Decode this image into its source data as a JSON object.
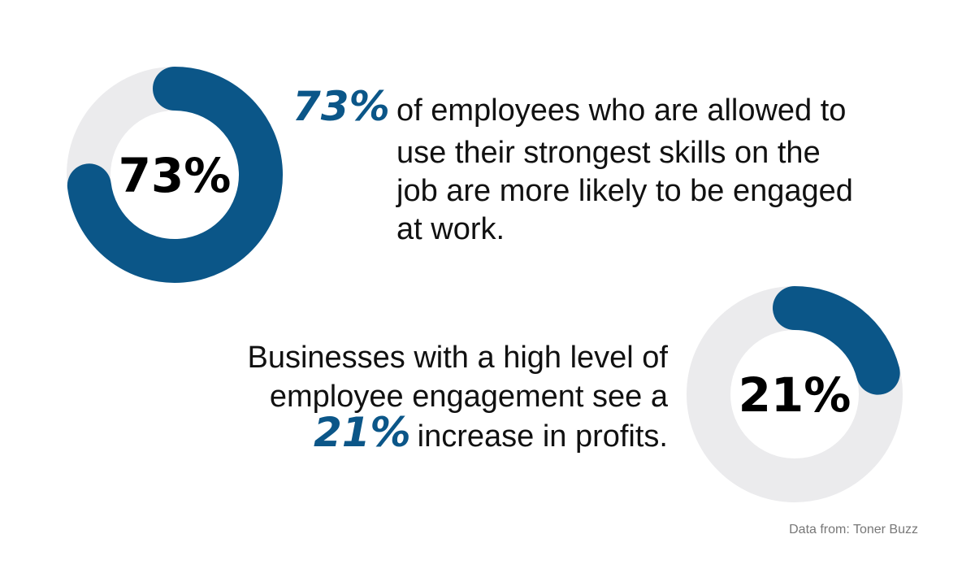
{
  "chart_data": [
    {
      "type": "donut",
      "values": [
        73
      ],
      "value_labels": [
        "73%"
      ],
      "ylim": [
        0,
        100
      ],
      "color": "#0b5688",
      "track_color": "#ebebed"
    },
    {
      "type": "donut",
      "values": [
        21
      ],
      "value_labels": [
        "21%"
      ],
      "ylim": [
        0,
        100
      ],
      "color": "#0b5688",
      "track_color": "#ebebed"
    }
  ],
  "statements": [
    {
      "highlight": "73%",
      "lines": [
        "of employees who are allowed to",
        "use their strongest skills on the",
        "job are more likely to be engaged",
        "at work."
      ]
    },
    {
      "highlight": "21%",
      "lines": [
        "Businesses with a high level of",
        "employee engagement see a",
        "increase in profits."
      ]
    }
  ],
  "source": "Data from: Toner Buzz"
}
